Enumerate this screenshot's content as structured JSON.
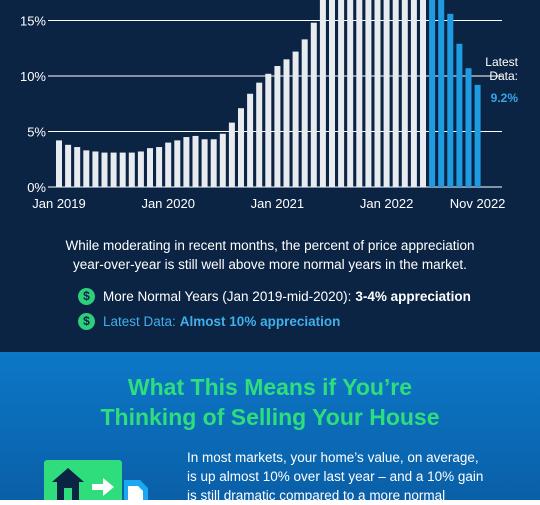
{
  "chart_data": {
    "type": "bar",
    "ylim": [
      0,
      18.5
    ],
    "y_ticks": [
      {
        "value": 0,
        "label": "0%"
      },
      {
        "value": 5,
        "label": "5%"
      },
      {
        "value": 10,
        "label": "10%"
      },
      {
        "value": 15,
        "label": "15%"
      }
    ],
    "x_ticks": [
      {
        "index": 0,
        "label": "Jan 2019"
      },
      {
        "index": 12,
        "label": "Jan 2020"
      },
      {
        "index": 24,
        "label": "Jan 2021"
      },
      {
        "index": 36,
        "label": "Jan 2022"
      },
      {
        "index": 46,
        "label": "Nov 2022"
      }
    ],
    "values": [
      4.2,
      3.8,
      3.6,
      3.3,
      3.2,
      3.1,
      3.1,
      3.1,
      3.1,
      3.2,
      3.5,
      3.6,
      4.0,
      4.2,
      4.5,
      4.6,
      4.3,
      4.3,
      4.8,
      5.8,
      7.1,
      8.4,
      9.4,
      10.2,
      10.9,
      11.5,
      12.2,
      13.3,
      14.8,
      18.5,
      18.5,
      18.5,
      18.5,
      18.5,
      18.5,
      18.5,
      18.5,
      18.5,
      18.5,
      18.5,
      18.5,
      18.5,
      17.0,
      15.6,
      12.9,
      10.7,
      9.2
    ],
    "highlight_from_index": 41,
    "colors": {
      "normal": "#e8ebef",
      "highlight": "#1f9be2",
      "grid": "#ffffff"
    },
    "annotation": {
      "lines": [
        "Latest",
        "Data:"
      ],
      "value": "9.2%"
    },
    "grid": true
  },
  "description": {
    "lines": [
      "While moderating in recent months, the percent of price appreciation",
      "year-over-year is still well above more normal years in the market."
    ]
  },
  "bullets": [
    {
      "icon": "$",
      "label": "More Normal Years (Jan 2019-mid-2020):",
      "value": "3-4% appreciation"
    },
    {
      "icon": "$",
      "label": "Latest Data:",
      "value": "Almost 10% appreciation"
    }
  ],
  "heading": {
    "lines": [
      "What This Means if You’re",
      "Thinking of Selling Your House"
    ]
  },
  "body": {
    "lines": [
      "In most markets, your home’s value, on average,",
      "is up almost 10% over last year – and a 10% gain",
      "is still dramatic compared to a more normal"
    ]
  },
  "colors": {
    "dark_bg": "#0c2444",
    "blue_bg": "#0c78c8",
    "accent_green": "#2fdd7c",
    "accent_blue": "#3fb0ec"
  },
  "icons": [
    "dollar-icon",
    "house-icon",
    "arrow-right-icon",
    "document-icon"
  ]
}
